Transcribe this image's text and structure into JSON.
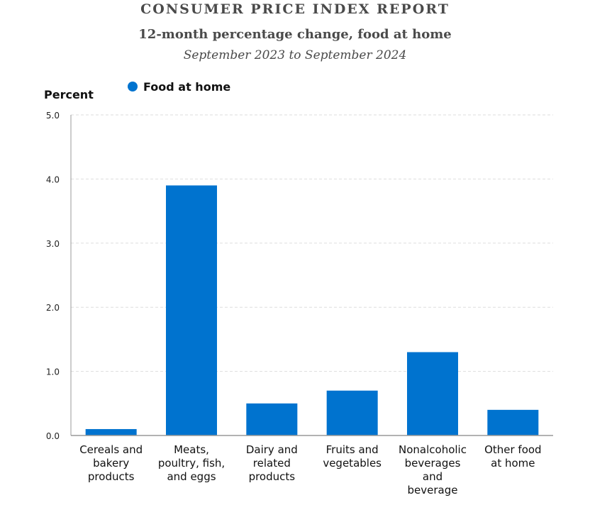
{
  "chart_data": {
    "type": "bar",
    "title": "CONSUMER PRICE INDEX REPORT",
    "subtitle": "12-month percentage change, food at home",
    "period": "September 2023 to September 2024",
    "ylabel": "Percent",
    "xlabel": "",
    "ylim": [
      0,
      5
    ],
    "yticks": [
      "0.0",
      "1.0",
      "2.0",
      "3.0",
      "4.0",
      "5.0"
    ],
    "grid": true,
    "legend_placement": "top-left",
    "categories": [
      [
        "Cereals and",
        "bakery",
        "products"
      ],
      [
        "Meats,",
        "poultry, fish,",
        "and eggs"
      ],
      [
        "Dairy and",
        "related",
        "products"
      ],
      [
        "Fruits and",
        "vegetables"
      ],
      [
        "Nonalcoholic",
        "beverages",
        "and",
        "beverage"
      ],
      [
        "Other food",
        "at home"
      ]
    ],
    "series": [
      {
        "name": "Food at home",
        "color": "#0073cf",
        "values": [
          0.1,
          3.9,
          0.5,
          0.7,
          1.3,
          0.4
        ]
      }
    ]
  }
}
